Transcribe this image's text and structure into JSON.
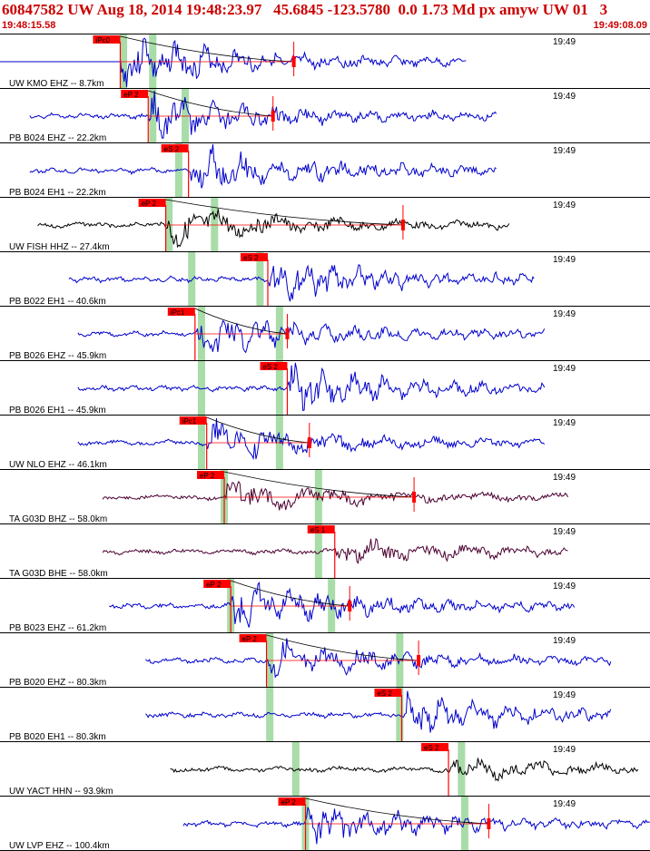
{
  "header": {
    "title": "60847582 UW Aug 18, 2014 19:48:23.97   45.6845 -123.5780  0.0 1.73 Md px amyw UW 01   3",
    "start_time": "19:48:15.58",
    "end_time": "19:49:08.09"
  },
  "chart_data": {
    "type": "line",
    "title": "",
    "time_tick_label": "19:49",
    "colors": {
      "trace_vertical": "#0000cc",
      "trace_broadband": "#000000",
      "trace_teleseismic": "#4b0030",
      "pick": "#ff0000",
      "pick_window": "#a8dca8"
    },
    "traces": [
      {
        "station": "UW KMO EHZ -- 8.7km",
        "pick": "iPc0",
        "color": "#0000cc",
        "start": 0.0,
        "end": 0.718,
        "onset": 0.185,
        "pick_t": 0.185,
        "green": [
          0.19,
          0.235
        ],
        "coda": 0.452,
        "amp": 0.95,
        "freq": 3.0,
        "baseline_before": true
      },
      {
        "station": "PB B024 EHZ -- 22.2km",
        "pick": "eP 2",
        "color": "#0000cc",
        "start": 0.046,
        "end": 0.765,
        "onset": 0.228,
        "pick_t": 0.228,
        "green": [
          0.235,
          0.285
        ],
        "coda": 0.42,
        "amp": 0.85,
        "freq": 3.0
      },
      {
        "station": "PB B024 EH1 -- 22.2km",
        "pick": "eS 2",
        "color": "#0000cc",
        "start": 0.046,
        "end": 0.765,
        "onset": 0.29,
        "pick_t": 0.29,
        "green": [
          0.275
        ],
        "amp": 0.85,
        "freq": 3.0
      },
      {
        "station": "UW FISH HHZ -- 27.4km",
        "pick": "eP 2",
        "color": "#000000",
        "start": 0.058,
        "end": 0.785,
        "onset": 0.255,
        "pick_t": 0.255,
        "green": [
          0.26,
          0.33
        ],
        "coda": 0.62,
        "amp": 0.7,
        "freq": 1.5
      },
      {
        "station": "PB B022 EH1 -- 40.6km",
        "pick": "eS 2",
        "color": "#0000cc",
        "start": 0.106,
        "end": 0.822,
        "onset": 0.412,
        "pick_t": 0.412,
        "green": [
          0.295,
          0.4
        ],
        "amp": 0.75,
        "freq": 3.5
      },
      {
        "station": "PB B026 EHZ -- 45.9km",
        "pick": "iPc1",
        "color": "#0000cc",
        "start": 0.12,
        "end": 0.838,
        "onset": 0.3,
        "pick_t": 0.3,
        "green": [
          0.31,
          0.43
        ],
        "coda": 0.442,
        "amp": 0.8,
        "freq": 3.0
      },
      {
        "station": "PB B026 EH1 -- 45.9km",
        "pick": "eS 2",
        "color": "#0000cc",
        "start": 0.12,
        "end": 0.838,
        "onset": 0.442,
        "pick_t": 0.442,
        "green": [
          0.31,
          0.43
        ],
        "amp": 0.8,
        "freq": 3.0
      },
      {
        "station": "UW NLO EHZ -- 46.1km",
        "pick": "iPc1",
        "color": "#0000cc",
        "start": 0.12,
        "end": 0.838,
        "onset": 0.318,
        "pick_t": 0.318,
        "green": [
          0.31,
          0.43
        ],
        "coda": 0.476,
        "amp": 0.75,
        "freq": 1.8
      },
      {
        "station": "TA G03D BHZ -- 58.0km",
        "pick": "eP 2",
        "color": "#4b0030",
        "start": 0.158,
        "end": 0.875,
        "onset": 0.345,
        "pick_t": 0.345,
        "green": [
          0.345,
          0.49
        ],
        "coda": 0.637,
        "amp": 0.55,
        "freq": 1.2
      },
      {
        "station": "TA G03D BHE -- 58.0km",
        "pick": "eS 1",
        "color": "#4b0030",
        "start": 0.158,
        "end": 0.875,
        "onset": 0.515,
        "pick_t": 0.515,
        "green": [
          0.49
        ],
        "amp": 0.45,
        "freq": 2.0
      },
      {
        "station": "PB B023 EHZ -- 61.2km",
        "pick": "eP 2",
        "color": "#0000cc",
        "start": 0.168,
        "end": 0.885,
        "onset": 0.355,
        "pick_t": 0.355,
        "green": [
          0.355,
          0.51
        ],
        "coda": 0.538,
        "amp": 0.8,
        "freq": 3.0
      },
      {
        "station": "PB B020 EHZ -- 80.3km",
        "pick": "eP 2",
        "color": "#0000cc",
        "start": 0.224,
        "end": 0.94,
        "onset": 0.41,
        "pick_t": 0.41,
        "green": [
          0.415,
          0.615
        ],
        "coda": 0.644,
        "amp": 0.7,
        "freq": 2.5
      },
      {
        "station": "PB B020 EH1 -- 80.3km",
        "pick": "eS 2",
        "color": "#0000cc",
        "start": 0.224,
        "end": 0.94,
        "onset": 0.618,
        "pick_t": 0.618,
        "green": [
          0.415,
          0.615
        ],
        "amp": 0.7,
        "freq": 2.8
      },
      {
        "station": "UW YACT HHN -- 93.9km",
        "pick": "eS 2",
        "color": "#000000",
        "start": 0.262,
        "end": 0.982,
        "onset": 0.69,
        "pick_t": 0.69,
        "green": [
          0.455,
          0.71
        ],
        "amp": 0.4,
        "freq": 1.5
      },
      {
        "station": "UW LVP EHZ -- 100.4km",
        "pick": "eP 2",
        "color": "#0000cc",
        "start": 0.282,
        "end": 1.0,
        "onset": 0.47,
        "pick_t": 0.47,
        "green": [
          0.47,
          0.715
        ],
        "coda": 0.752,
        "amp": 0.75,
        "freq": 3.0
      }
    ]
  }
}
